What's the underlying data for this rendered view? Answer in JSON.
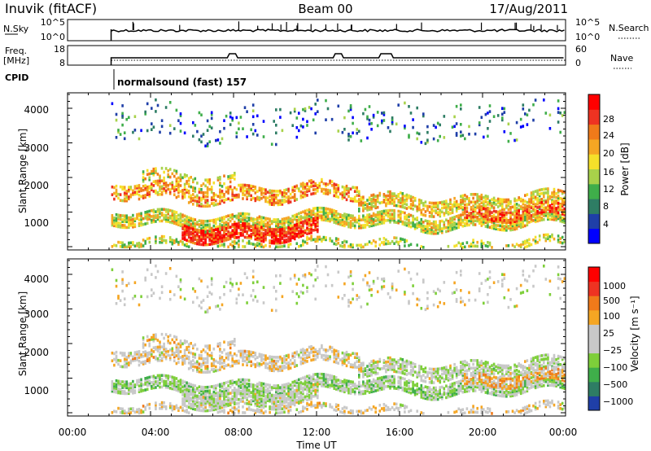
{
  "header": {
    "station": "Inuvik (fitACF)",
    "beam": "Beam 00",
    "date": "17/Aug/2011"
  },
  "strip_panels": {
    "nsky_label": "N.Sky",
    "nsky_ticks": [
      "10^5",
      "10^0"
    ],
    "nsearch_label": "N.Search",
    "nsearch_ticks": [
      "10^5",
      "10^0"
    ],
    "freq_label_line1": "Freq.",
    "freq_label_line2": "[MHz]",
    "freq_ticks": [
      "18",
      "8"
    ],
    "nave_label": "Nave",
    "nave_ticks": [
      "60",
      "0"
    ],
    "cpid_label": "CPID",
    "cpid_text": "normalsound (fast) 157"
  },
  "chart_data": [
    {
      "type": "heatmap",
      "name": "power",
      "ylabel": "Slant Range [km]",
      "yticks": [
        "4000",
        "3000",
        "2000",
        "1000"
      ],
      "ylim": [
        200,
        4500
      ],
      "xlim": [
        0,
        24
      ],
      "colorbar_label": "Power [dB]",
      "colorbar_ticks": [
        "28",
        "24",
        "20",
        "16",
        "12",
        "8",
        "4"
      ],
      "colorbar_colors": [
        "#0000ff",
        "#1f3fa8",
        "#2e7d64",
        "#3fae4a",
        "#a8d24a",
        "#f5e02a",
        "#f5a623",
        "#f07a1a",
        "#ee3322",
        "#ff0000"
      ]
    },
    {
      "type": "heatmap",
      "name": "velocity",
      "ylabel": "Slant Range [km]",
      "yticks": [
        "4000",
        "3000",
        "2000",
        "1000"
      ],
      "ylim": [
        200,
        4500
      ],
      "xlim": [
        0,
        24
      ],
      "colorbar_label": "Velocity [m s⁻¹]",
      "colorbar_ticks": [
        "1000",
        "500",
        "100",
        "25",
        "−25",
        "−100",
        "−500",
        "−1000"
      ],
      "colorbar_colors": [
        "#1f3fa8",
        "#2e7d64",
        "#3fae4a",
        "#7ecf3a",
        "#c8c8c8",
        "#c8c8c8",
        "#f5a623",
        "#f07a1a",
        "#ee3322",
        "#ff0000"
      ]
    }
  ],
  "x_axis": {
    "ticks": [
      "00:00",
      "04:00",
      "08:00",
      "12:00",
      "16:00",
      "20:00",
      "00:00"
    ],
    "label": "Time UT"
  }
}
